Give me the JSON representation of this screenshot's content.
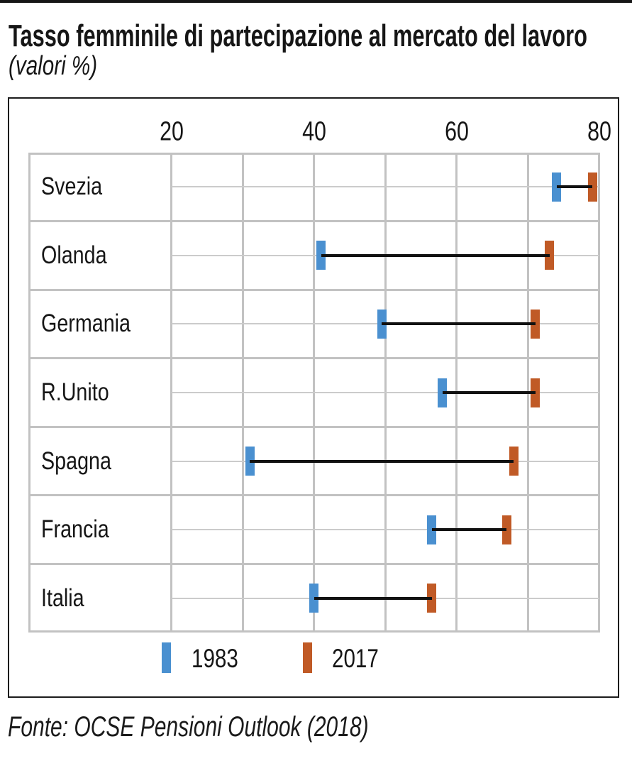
{
  "header": {
    "title": "Tasso femminile di partecipazione al mercato del lavoro",
    "subtitle": "(valori %)"
  },
  "footer": {
    "source": "Fonte: OCSE Pensioni Outlook (2018)"
  },
  "chart_data": {
    "type": "dumbbell",
    "title": "Tasso femminile di partecipazione al mercato del lavoro",
    "subtitle": "(valori %)",
    "xlabel": "",
    "ylabel": "",
    "x_axis": {
      "ticks": [
        20,
        40,
        60,
        80
      ],
      "gridline_values": [
        20,
        30,
        40,
        50,
        60,
        70,
        80
      ],
      "min": 20,
      "max": 80,
      "unit": "%"
    },
    "grid": "on",
    "legend_position": "bottom",
    "categories": [
      "Svezia",
      "Olanda",
      "Germania",
      "R.Unito",
      "Spagna",
      "Francia",
      "Italia"
    ],
    "series": [
      {
        "name": "1983",
        "color": "#4a90d0",
        "values": [
          74,
          41,
          49.5,
          58,
          31,
          56.5,
          40
        ]
      },
      {
        "name": "2017",
        "color": "#c05a26",
        "values": [
          79,
          73,
          71,
          71,
          68,
          67,
          56.5
        ]
      }
    ],
    "connector_color": "#111111",
    "gridline_color": "#c2c2c2",
    "source": "Fonte: OCSE Pensioni Outlook (2018)"
  }
}
